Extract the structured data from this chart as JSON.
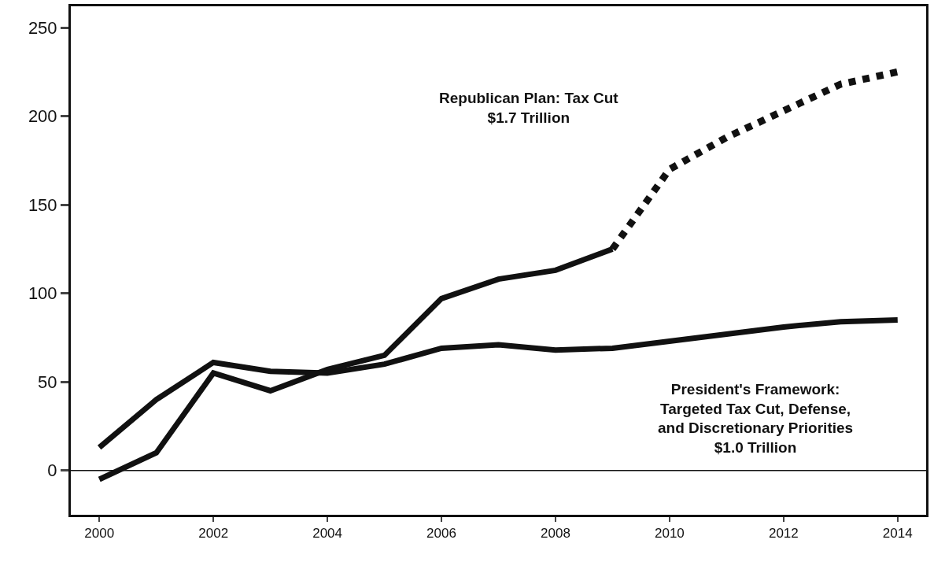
{
  "chart_data": {
    "type": "line",
    "x": [
      2000,
      2001,
      2002,
      2003,
      2004,
      2005,
      2006,
      2007,
      2008,
      2009,
      2010,
      2011,
      2012,
      2013,
      2014
    ],
    "series": [
      {
        "color": "#111111",
        "line_style": "solid",
        "x": [
          2000,
          2001,
          2002,
          2003,
          2004,
          2005,
          2006,
          2007,
          2008,
          2009
        ],
        "values": [
          -5,
          10,
          55,
          45,
          57,
          65,
          97,
          108,
          113,
          125
        ]
      },
      {
        "color": "#111111",
        "line_style": "dotted",
        "x": [
          2009,
          2010,
          2011,
          2012,
          2013,
          2014
        ],
        "values": [
          125,
          170,
          188,
          203,
          218,
          225
        ]
      },
      {
        "color": "#111111",
        "line_style": "solid",
        "values": [
          13,
          40,
          61,
          56,
          55,
          60,
          69,
          71,
          68,
          69,
          73,
          77,
          81,
          84,
          85
        ]
      }
    ],
    "xlim": [
      1999.5,
      2014.5
    ],
    "ylim": [
      -25,
      262
    ],
    "xticks": [
      2000,
      2002,
      2004,
      2006,
      2008,
      2010,
      2012,
      2014
    ],
    "yticks": [
      0,
      50,
      100,
      150,
      200,
      250
    ],
    "ref_lines": [
      {
        "axis": "y",
        "value": 0,
        "color": "#111111"
      }
    ],
    "annotations": [
      "Republican Plan: Tax Cut\n$1.7 Trillion",
      "President's Framework:\nTargeted Tax Cut, Defense,\nand Discretionary Priorities\n$1.0 Trillion"
    ],
    "marker": "none"
  }
}
